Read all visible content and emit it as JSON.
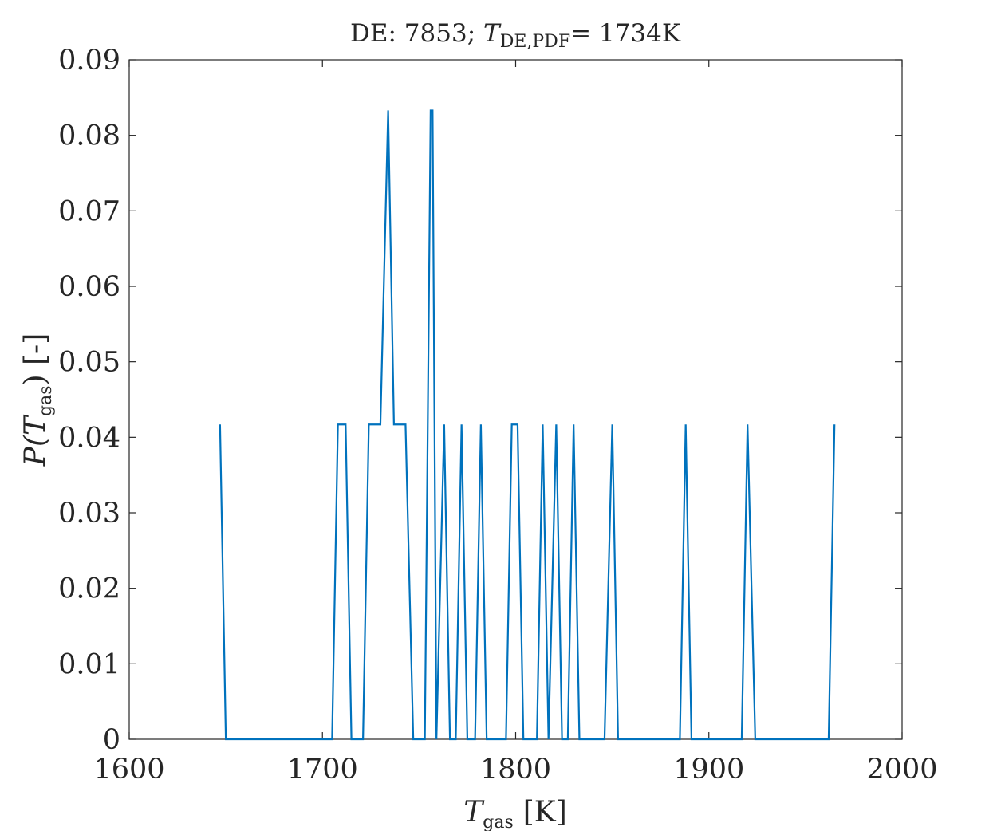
{
  "chart_data": {
    "type": "line",
    "title": {
      "prefix": "DE: 7853; ",
      "var": "T",
      "sub": "DE,PDF",
      "suffix": "= 1734K"
    },
    "xlabel": {
      "var": "T",
      "sub": "gas",
      "unit": "[K]"
    },
    "ylabel": {
      "pre": "P(",
      "var": "T",
      "sub": "gas",
      "post": ") [-]"
    },
    "xlim": [
      1600,
      2000
    ],
    "ylim": [
      0,
      0.09
    ],
    "xticks": [
      "1600",
      "1700",
      "1800",
      "1900",
      "2000"
    ],
    "yticks": [
      "0",
      "0.01",
      "0.02",
      "0.03",
      "0.04",
      "0.05",
      "0.06",
      "0.07",
      "0.08",
      "0.09"
    ],
    "grid": false,
    "series": [
      {
        "color": "#0072BD",
        "points": [
          [
            1647,
            0.0417
          ],
          [
            1650,
            0
          ],
          [
            1705,
            0
          ],
          [
            1708,
            0.0417
          ],
          [
            1712,
            0.0417
          ],
          [
            1715,
            0
          ],
          [
            1721,
            0
          ],
          [
            1724,
            0.0417
          ],
          [
            1730,
            0.0417
          ],
          [
            1734,
            0.0833
          ],
          [
            1737,
            0.0417
          ],
          [
            1743,
            0.0417
          ],
          [
            1747,
            0
          ],
          [
            1753,
            0
          ],
          [
            1756,
            0.0833
          ],
          [
            1757,
            0.0833
          ],
          [
            1759,
            0
          ],
          [
            1763,
            0.0417
          ],
          [
            1766,
            0
          ],
          [
            1769,
            0
          ],
          [
            1772,
            0.0417
          ],
          [
            1775,
            0
          ],
          [
            1779,
            0
          ],
          [
            1782,
            0.0417
          ],
          [
            1785,
            0
          ],
          [
            1795,
            0
          ],
          [
            1798,
            0.0417
          ],
          [
            1801,
            0.0417
          ],
          [
            1804,
            0
          ],
          [
            1811,
            0
          ],
          [
            1814,
            0.0417
          ],
          [
            1817,
            0
          ],
          [
            1821,
            0.0417
          ],
          [
            1824,
            0
          ],
          [
            1827,
            0
          ],
          [
            1830,
            0.0417
          ],
          [
            1833,
            0
          ],
          [
            1846,
            0
          ],
          [
            1850,
            0.0417
          ],
          [
            1853,
            0
          ],
          [
            1885,
            0
          ],
          [
            1888,
            0.0417
          ],
          [
            1891,
            0
          ],
          [
            1917,
            0
          ],
          [
            1920,
            0.0417
          ],
          [
            1924,
            0
          ],
          [
            1962,
            0
          ],
          [
            1965,
            0.0417
          ]
        ]
      }
    ]
  }
}
